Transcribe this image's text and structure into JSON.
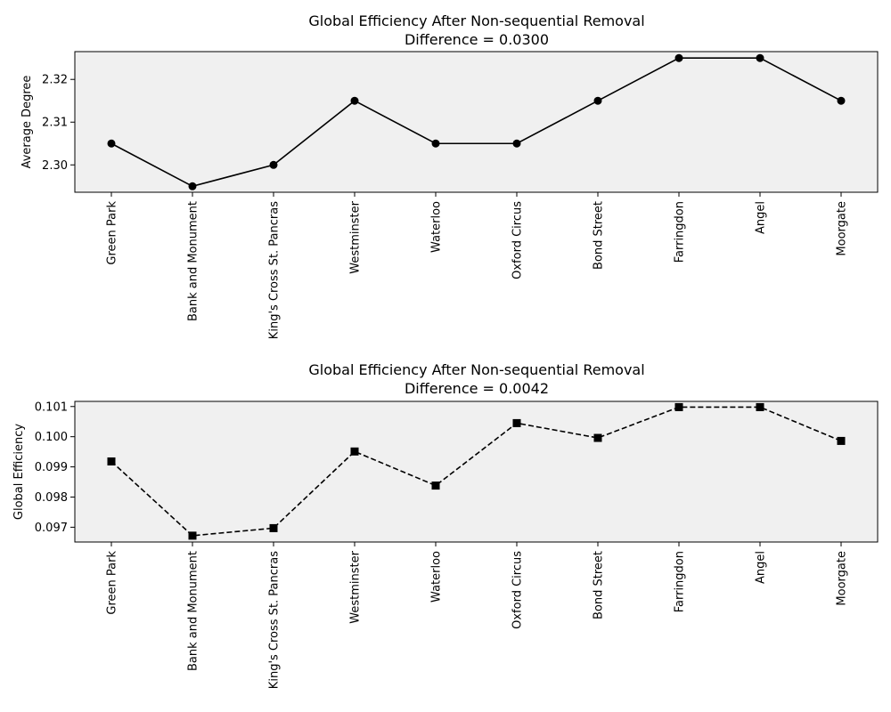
{
  "chart_data": [
    {
      "type": "line",
      "title": "Global Efficiency After Non-sequential Removal",
      "subtitle": "Difference = 0.0300",
      "xlabel": "",
      "ylabel": "Average Degree",
      "categories": [
        "Green Park",
        "Bank and Monument",
        "King's Cross St. Pancras",
        "Westminster",
        "Waterloo",
        "Oxford Circus",
        "Bond Street",
        "Farringdon",
        "Angel",
        "Moorgate"
      ],
      "series": [
        {
          "values": [
            2.305,
            2.295,
            2.3,
            2.315,
            2.305,
            2.305,
            2.315,
            2.325,
            2.325,
            2.315
          ]
        }
      ],
      "ylim": [
        2.2936,
        2.3265
      ],
      "yticks": [
        2.3,
        2.31,
        2.32
      ],
      "ytick_labels": [
        "2.30",
        "2.31",
        "2.32"
      ],
      "line_style": "solid",
      "marker": "circle",
      "color": "#000000",
      "background": "#f0f0f0",
      "grid": false
    },
    {
      "type": "line",
      "title": "Global Efficiency After Non-sequential Removal",
      "subtitle": "Difference = 0.0042",
      "xlabel": "",
      "ylabel": "Global Efficiency",
      "categories": [
        "Green Park",
        "Bank and Monument",
        "King's Cross St. Pancras",
        "Westminster",
        "Waterloo",
        "Oxford Circus",
        "Bond Street",
        "Farringdon",
        "Angel",
        "Moorgate"
      ],
      "series": [
        {
          "values": [
            0.09918,
            0.09672,
            0.09697,
            0.09951,
            0.09838,
            0.10045,
            0.09996,
            0.10098,
            0.10098,
            0.09986
          ]
        }
      ],
      "ylim": [
        0.09651,
        0.10117
      ],
      "yticks": [
        0.097,
        0.098,
        0.099,
        0.1,
        0.101
      ],
      "ytick_labels": [
        "0.097",
        "0.098",
        "0.099",
        "0.100",
        "0.101"
      ],
      "line_style": "dashed",
      "marker": "square",
      "color": "#000000",
      "background": "#f0f0f0",
      "grid": false
    }
  ]
}
